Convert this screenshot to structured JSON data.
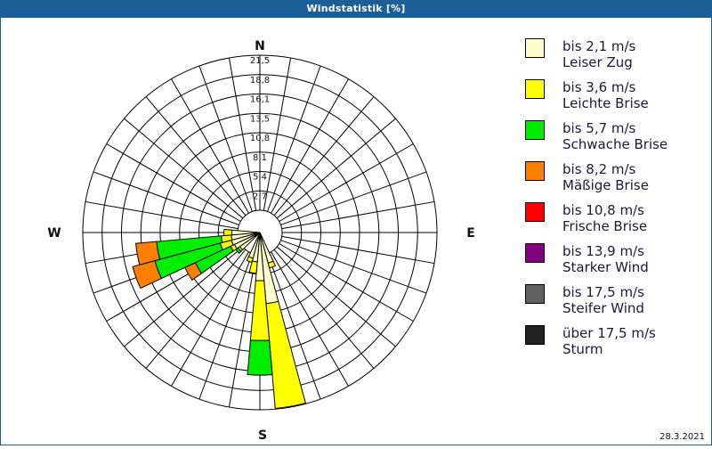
{
  "title": "Windstatistik [%]",
  "date": "28.3.2021",
  "compass": {
    "n": "N",
    "e": "E",
    "s": "S",
    "w": "W"
  },
  "legend": [
    {
      "line1": "bis 2,1 m/s",
      "line2": "Leiser Zug",
      "color": "#ffffcc"
    },
    {
      "line1": "bis 3,6 m/s",
      "line2": "Leichte Brise",
      "color": "#ffff00"
    },
    {
      "line1": "bis 5,7 m/s",
      "line2": "Schwache Brise",
      "color": "#00ee00"
    },
    {
      "line1": "bis 8,2 m/s",
      "line2": "Mäßige Brise",
      "color": "#ff8000"
    },
    {
      "line1": "bis 10,8 m/s",
      "line2": "Frische Brise",
      "color": "#ff0000"
    },
    {
      "line1": "bis 13,9 m/s",
      "line2": "Starker Wind",
      "color": "#800080"
    },
    {
      "line1": "bis 17,5 m/s",
      "line2": "Steifer Wind",
      "color": "#606060"
    },
    {
      "line1": "über 17,5 m/s",
      "line2": "Sturm",
      "color": "#222222"
    }
  ],
  "chart_data": {
    "type": "wind-rose",
    "title": "Windstatistik [%]",
    "unit": "%",
    "ring_labels": [
      "2,7",
      "5,4",
      "8,1",
      "10,8",
      "13,5",
      "16,1",
      "18,8",
      "21,5"
    ],
    "ring_values": [
      2.7,
      5.4,
      8.1,
      10.8,
      13.5,
      16.1,
      18.8,
      21.5
    ],
    "rmax": 21.5,
    "sector_width_deg": 10,
    "series": [
      "bis 2,1 m/s",
      "bis 3,6 m/s",
      "bis 5,7 m/s",
      "bis 8,2 m/s",
      "bis 10,8 m/s",
      "bis 13,9 m/s",
      "bis 17,5 m/s",
      "über 17,5 m/s"
    ],
    "sectors": [
      {
        "dir": 160,
        "cumulative": [
          1.3,
          2.0
        ]
      },
      {
        "dir": 170,
        "cumulative": [
          6.8,
          21.4
        ]
      },
      {
        "dir": 180,
        "cumulative": [
          3.6,
          11.9,
          16.7
        ]
      },
      {
        "dir": 190,
        "cumulative": [
          1.0,
          2.6
        ]
      },
      {
        "dir": 200,
        "cumulative": [
          0.6,
          1.2
        ]
      },
      {
        "dir": 230,
        "cumulative": [
          0.3,
          0.6,
          1.0
        ]
      },
      {
        "dir": 240,
        "cumulative": [
          0.8,
          1.4,
          6.8,
          8.4
        ]
      },
      {
        "dir": 250,
        "cumulative": [
          1.0,
          2.6,
          12.0,
          15.2
        ]
      },
      {
        "dir": 260,
        "cumulative": [
          0.9,
          2.3,
          11.3,
          14.2
        ]
      },
      {
        "dir": 270,
        "cumulative": [
          0.8,
          1.9
        ]
      }
    ]
  }
}
